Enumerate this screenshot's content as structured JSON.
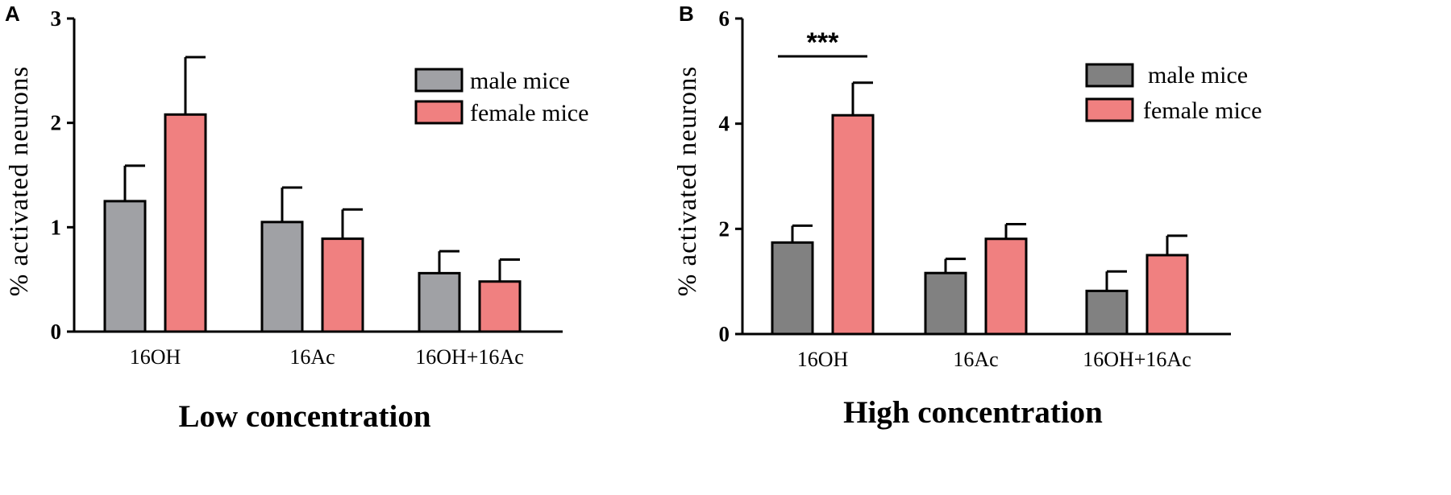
{
  "chart_data": [
    {
      "panel": "A",
      "type": "bar",
      "title": "",
      "xlabel": "Low concentration",
      "ylabel": "% activated neurons",
      "ylim": [
        0,
        3
      ],
      "yticks": [
        "0",
        "1",
        "2",
        "3"
      ],
      "categories": [
        "16OH",
        "16Ac",
        "16OH+16Ac"
      ],
      "series": [
        {
          "name": "male mice",
          "color": "#a0a1a5",
          "values": [
            1.25,
            1.05,
            0.56
          ],
          "errors": [
            0.34,
            0.33,
            0.21
          ]
        },
        {
          "name": "female mice",
          "color": "#f08080",
          "values": [
            2.08,
            0.89,
            0.48
          ],
          "errors": [
            0.55,
            0.28,
            0.21
          ]
        }
      ],
      "legend": "top-right",
      "annotations": []
    },
    {
      "panel": "B",
      "type": "bar",
      "title": "",
      "xlabel": "High concentration",
      "ylabel": "% activated neurons",
      "ylim": [
        0,
        6
      ],
      "yticks": [
        "0",
        "2",
        "4",
        "6"
      ],
      "categories": [
        "16OH",
        "16Ac",
        "16OH+16Ac"
      ],
      "series": [
        {
          "name": "male mice",
          "color": "#818181",
          "values": [
            1.74,
            1.16,
            0.82
          ],
          "errors": [
            0.32,
            0.27,
            0.37
          ]
        },
        {
          "name": "female mice",
          "color": "#f08080",
          "values": [
            4.16,
            1.81,
            1.5
          ],
          "errors": [
            0.62,
            0.28,
            0.37
          ]
        }
      ],
      "legend": "top-right",
      "annotations": [
        {
          "text": "***",
          "category": "16OH"
        }
      ]
    }
  ]
}
